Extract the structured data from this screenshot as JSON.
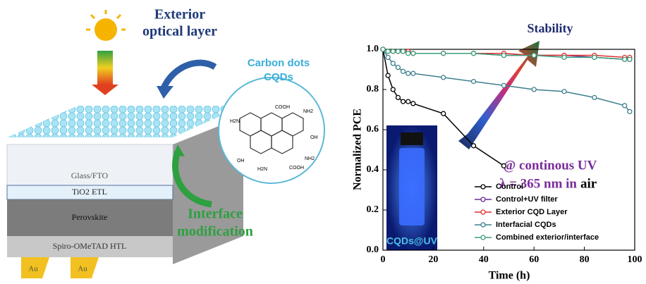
{
  "diagram": {
    "exterior": [
      "Exterior",
      "optical layer"
    ],
    "carbon_dots": "Carbon dots",
    "cqds": "CQDs",
    "layers": [
      "Glass/FTO",
      "TiO2 ETL",
      "Perovskite",
      "Spiro-OMeTAD HTL"
    ],
    "electrodes": [
      "Au",
      "Au"
    ],
    "interface": [
      "Interface",
      "modification"
    ],
    "molecule_groups": [
      "COOH",
      "H2N",
      "NH2",
      "OH",
      "OH",
      "H2N",
      "COOH",
      "NH2"
    ]
  },
  "chart_data": {
    "type": "line",
    "xlabel": "Time (h)",
    "ylabel": "Normalized PCE",
    "x": [
      0,
      2,
      4,
      6,
      8,
      10,
      12,
      24,
      36,
      48,
      60,
      72,
      84,
      96,
      98
    ],
    "xlim": [
      0,
      100
    ],
    "xticks": [
      0,
      20,
      40,
      60,
      80,
      100
    ],
    "ylim": [
      0,
      1
    ],
    "yticks": [
      {
        "value": 0,
        "label": "0.0"
      },
      0.2,
      0.4,
      0.6,
      0.8,
      {
        "value": 1,
        "label": "1.0"
      }
    ],
    "legend": "lower right",
    "series": [
      {
        "name": "Control",
        "color": "#000000",
        "values": [
          1.0,
          0.87,
          0.8,
          0.76,
          0.74,
          0.74,
          0.73,
          0.68,
          0.52,
          0.42,
          null,
          null,
          null,
          null,
          null
        ]
      },
      {
        "name": "Control+UV filter",
        "color": "#6a2c91",
        "values": [
          1.0,
          0.99,
          0.99,
          0.99,
          0.99,
          0.99,
          0.98,
          0.98,
          0.98,
          0.97,
          0.97,
          0.97,
          0.96,
          0.95,
          0.95
        ]
      },
      {
        "name": "Exterior CQD Layer",
        "color": "#e03030",
        "values": [
          1.0,
          0.99,
          0.99,
          0.99,
          0.99,
          0.99,
          0.98,
          0.98,
          0.98,
          0.98,
          0.97,
          0.97,
          0.97,
          0.96,
          0.96
        ]
      },
      {
        "name": "Interfacial CQDs",
        "color": "#3d7f8f",
        "values": [
          1.0,
          0.96,
          0.93,
          0.91,
          0.89,
          0.88,
          0.88,
          0.86,
          0.84,
          0.82,
          0.8,
          0.79,
          0.76,
          0.72,
          0.69
        ]
      },
      {
        "name": "Combined exterior/interface",
        "color": "#3aa07a",
        "values": [
          1.0,
          0.99,
          0.99,
          0.99,
          0.99,
          0.98,
          0.98,
          0.98,
          0.98,
          0.97,
          0.97,
          0.96,
          0.96,
          0.95,
          0.95
        ]
      }
    ],
    "annotations": [
      "Stability",
      "@ continous UV",
      "λ = 365 nm in",
      "air",
      "CQDs@UV"
    ]
  }
}
